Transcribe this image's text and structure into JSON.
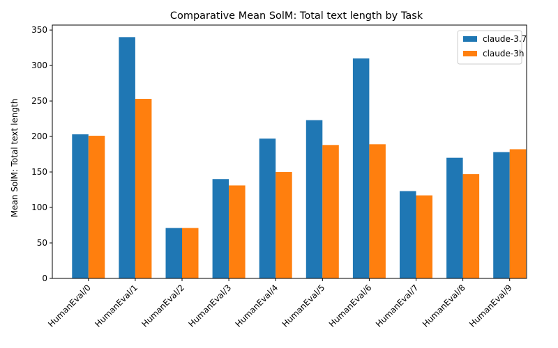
{
  "chart_data": {
    "type": "bar",
    "title": "Comparative Mean SolM: Total text length by Task",
    "xlabel": "",
    "ylabel": "Mean SolM: Total text length",
    "ylim": [
      0,
      357
    ],
    "yticks": [
      0,
      50,
      100,
      150,
      200,
      250,
      300,
      350
    ],
    "grid": false,
    "legend_position": "top-right",
    "categories": [
      "HumanEval/0",
      "HumanEval/1",
      "HumanEval/2",
      "HumanEval/3",
      "HumanEval/4",
      "HumanEval/5",
      "HumanEval/6",
      "HumanEval/7",
      "HumanEval/8",
      "HumanEval/9"
    ],
    "series": [
      {
        "name": "claude-3.7",
        "color": "#1f77b4",
        "values": [
          203,
          340,
          71,
          140,
          197,
          223,
          310,
          123,
          170,
          178
        ]
      },
      {
        "name": "claude-3h",
        "color": "#ff7f0e",
        "values": [
          201,
          253,
          71,
          131,
          150,
          188,
          189,
          117,
          147,
          182
        ]
      }
    ]
  }
}
